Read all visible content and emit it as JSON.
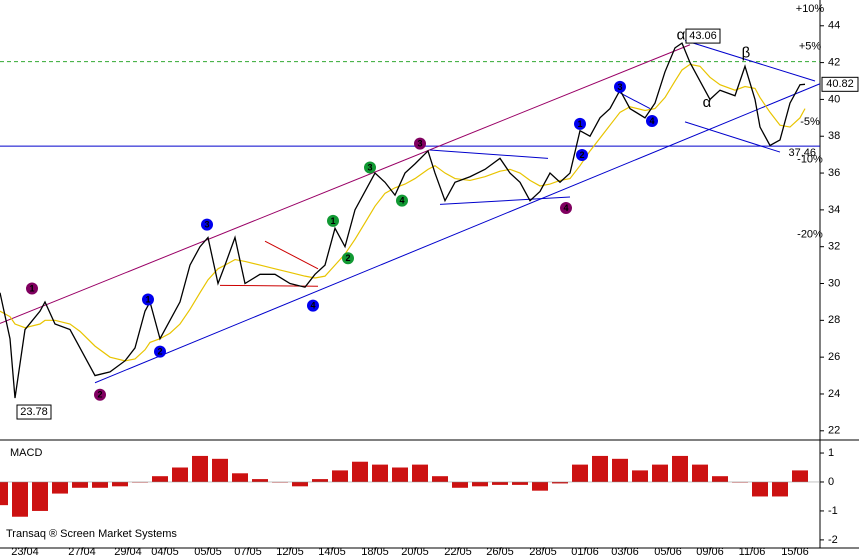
{
  "chart_data": [
    {
      "type": "line",
      "xlim": [
        0,
        41
      ],
      "ylim": [
        21.5,
        45.4
      ],
      "yticks": [
        22,
        24,
        26,
        28,
        30,
        32,
        34,
        36,
        38,
        40,
        42,
        44
      ],
      "x": [
        0,
        0.5,
        0.75,
        1.25,
        2,
        2.25,
        2.75,
        3.5,
        4,
        4.75,
        5.5,
        6.25,
        6.75,
        7.25,
        7.5,
        8,
        8.5,
        9,
        9.5,
        10,
        10.4,
        10.9,
        11.25,
        11.75,
        12.25,
        13,
        13.75,
        14.5,
        15.25,
        15.75,
        16.25,
        16.75,
        17.25,
        17.75,
        18.25,
        18.75,
        19.25,
        19.75,
        20.25,
        20.75,
        21.4,
        21.75,
        22.25,
        22.75,
        23.5,
        24.25,
        25,
        25.5,
        26,
        26.5,
        27,
        27.5,
        28,
        28.5,
        29,
        29.5,
        30,
        30.5,
        31,
        31.5,
        32.25,
        32.75,
        33.25,
        33.75,
        34.1,
        34.5,
        35,
        35.5,
        36,
        36.75,
        37.25,
        37.75,
        38,
        38.5,
        39,
        39.5,
        40,
        40.25
      ],
      "series": [
        {
          "color": "#000000",
          "values": [
            29.5,
            27,
            23.78,
            27.5,
            28.5,
            29,
            27.8,
            27.5,
            26.5,
            25,
            25.2,
            25.8,
            26.5,
            28.5,
            29,
            27,
            28,
            29,
            31,
            32,
            32.5,
            30,
            31,
            32.5,
            30,
            30.5,
            30.5,
            30,
            29.8,
            30.5,
            31,
            33,
            32,
            34,
            35,
            36,
            35.5,
            34.8,
            36,
            36.5,
            37.2,
            36,
            34.5,
            35.5,
            35.8,
            36.2,
            36.8,
            36,
            35.5,
            34.5,
            35,
            36,
            35.5,
            36,
            38.3,
            38,
            39,
            39.5,
            40.5,
            39.5,
            39,
            39.8,
            41.5,
            42.8,
            43.06,
            42,
            41,
            40,
            40.5,
            40.2,
            41.8,
            40,
            38.5,
            37.5,
            37.8,
            39.8,
            40.8,
            40.82
          ]
        },
        {
          "color": "#e8c400",
          "values": [
            28.5,
            28.2,
            27.8,
            27.6,
            27.8,
            28,
            28,
            27.8,
            27.4,
            26.6,
            26,
            25.8,
            25.9,
            26.4,
            26.8,
            27,
            27.3,
            27.8,
            28.6,
            29.5,
            30.2,
            30.8,
            31,
            31.3,
            31.2,
            31,
            30.8,
            30.6,
            30.4,
            30.3,
            30.4,
            31,
            31.6,
            32.4,
            33.3,
            34.2,
            34.9,
            35.2,
            35.4,
            35.7,
            36.2,
            36.4,
            36,
            35.7,
            35.6,
            35.8,
            36.1,
            36.2,
            36,
            35.6,
            35.3,
            35.4,
            35.6,
            35.7,
            36.4,
            37.2,
            37.9,
            38.6,
            39.3,
            39.6,
            39.4,
            39.5,
            40.1,
            41,
            41.6,
            41.9,
            41.8,
            41.2,
            40.8,
            40.5,
            40.7,
            40.6,
            40.1,
            39.3,
            38.6,
            38.5,
            39,
            39.5
          ]
        }
      ],
      "hlines": [
        {
          "value": 37.46,
          "color": "#0000cc",
          "dashed": false,
          "labeled": true
        },
        {
          "value": 42.05,
          "color": "#33aa33",
          "dashed": true,
          "labeled": false
        }
      ],
      "levels": [
        {
          "value": 44.9,
          "label": "+10%",
          "color": "#22922a"
        },
        {
          "value": 42.86,
          "label": "+5%",
          "color": "#22922a"
        },
        {
          "value": 38.78,
          "label": "-5%",
          "color": "#cc1111"
        },
        {
          "value": 36.74,
          "label": "-10%",
          "color": "#cc1111"
        },
        {
          "value": 32.66,
          "label": "-20%",
          "color": "#cc1111"
        }
      ],
      "lines": [
        {
          "x": [
            0,
            34.5
          ],
          "y": [
            27.83,
            42.97
          ],
          "color": "#990066"
        },
        {
          "x": [
            4.75,
            41
          ],
          "y": [
            24.61,
            40.85
          ],
          "color": "#0000cc"
        },
        {
          "x": [
            21.5,
            27.4
          ],
          "y": [
            37.25,
            36.8
          ],
          "color": "#0000cc"
        },
        {
          "x": [
            22,
            28.5
          ],
          "y": [
            34.3,
            34.7
          ],
          "color": "#0000cc"
        },
        {
          "x": [
            13.25,
            15.9
          ],
          "y": [
            32.3,
            30.8
          ],
          "color": "#cc0000"
        },
        {
          "x": [
            11,
            15.9
          ],
          "y": [
            29.9,
            29.85
          ],
          "color": "#cc0000"
        },
        {
          "x": [
            30.75,
            32.5
          ],
          "y": [
            40.5,
            39.5
          ],
          "color": "#0000cc"
        },
        {
          "x": [
            34.25,
            40.75
          ],
          "y": [
            43.2,
            41.0
          ],
          "color": "#0000cc"
        },
        {
          "x": [
            34.25,
            39
          ],
          "y": [
            38.78,
            37.14
          ],
          "color": "#0000cc"
        }
      ],
      "annotations": [
        {
          "text": "1",
          "x": 1.6,
          "y": 29.73,
          "color": "#800060",
          "circle": true
        },
        {
          "text": "2",
          "x": 5,
          "y": 23.96,
          "color": "#800060",
          "circle": true
        },
        {
          "text": "1",
          "x": 7.4,
          "y": 29.13,
          "color": "#0000ee",
          "circle": true
        },
        {
          "text": "2",
          "x": 8,
          "y": 26.3,
          "color": "#0000ee",
          "circle": true
        },
        {
          "text": "3",
          "x": 10.35,
          "y": 33.2,
          "color": "#0000ee",
          "circle": true
        },
        {
          "text": "4",
          "x": 15.65,
          "y": 28.8,
          "color": "#0000ee",
          "circle": true
        },
        {
          "text": "1",
          "x": 16.65,
          "y": 33.4,
          "color": "#119933",
          "circle": true
        },
        {
          "text": "2",
          "x": 17.4,
          "y": 31.37,
          "color": "#119933",
          "circle": true
        },
        {
          "text": "3",
          "x": 18.5,
          "y": 36.3,
          "color": "#119933",
          "circle": true
        },
        {
          "text": "4",
          "x": 20.1,
          "y": 34.5,
          "color": "#119933",
          "circle": true
        },
        {
          "text": "3",
          "x": 21,
          "y": 37.6,
          "color": "#800060",
          "circle": true
        },
        {
          "text": "4",
          "x": 28.3,
          "y": 34.1,
          "color": "#800060",
          "circle": true
        },
        {
          "text": "1",
          "x": 29,
          "y": 38.67,
          "color": "#0000ee",
          "circle": true
        },
        {
          "text": "2",
          "x": 29.1,
          "y": 36.98,
          "color": "#0000ee",
          "circle": true
        },
        {
          "text": "3",
          "x": 31,
          "y": 40.68,
          "color": "#0000ee",
          "circle": true
        },
        {
          "text": "4",
          "x": 32.6,
          "y": 38.83,
          "color": "#0000ee",
          "circle": true
        },
        {
          "text": "α",
          "x": 34.05,
          "y": 43.46,
          "color": "#800060",
          "circle": false
        },
        {
          "text": "α",
          "x": 35.35,
          "y": 39.8,
          "color": "#338888",
          "circle": false
        },
        {
          "text": "β",
          "x": 37.3,
          "y": 42.48,
          "color": "#338888",
          "circle": false
        }
      ],
      "callouts": [
        {
          "x": 34.1,
          "value": 43.06,
          "side": "right"
        },
        {
          "x": 0.75,
          "value": 23.78,
          "side": "below"
        }
      ]
    },
    {
      "type": "bar",
      "title": "MACD",
      "source": "Transaq ® Screen Market Systems",
      "xlim": [
        0,
        41
      ],
      "ylim": [
        -2.28,
        1.45
      ],
      "yticks": [
        -2,
        -1,
        0,
        1
      ],
      "color": "#cc1111",
      "x": [
        0,
        1,
        2,
        3,
        4,
        5,
        6,
        7,
        8,
        9,
        10,
        11,
        12,
        13,
        14,
        15,
        16,
        17,
        18,
        19,
        20,
        21,
        22,
        23,
        24,
        25,
        26,
        27,
        28,
        29,
        30,
        31,
        32,
        33,
        34,
        35,
        36,
        37,
        38,
        39,
        40
      ],
      "values": [
        -0.8,
        -1.2,
        -1.0,
        -0.4,
        -0.2,
        -0.2,
        -0.15,
        0,
        0.2,
        0.5,
        0.9,
        0.8,
        0.3,
        0.1,
        0,
        -0.15,
        0.1,
        0.4,
        0.7,
        0.6,
        0.5,
        0.6,
        0.2,
        -0.2,
        -0.15,
        -0.1,
        -0.1,
        -0.3,
        -0.05,
        0.6,
        0.9,
        0.8,
        0.4,
        0.6,
        0.9,
        0.6,
        0.2,
        0,
        -0.5,
        -0.5,
        0.4
      ],
      "xticks": [
        {
          "value": 1.25,
          "label": "23/04"
        },
        {
          "value": 4.1,
          "label": "27/04"
        },
        {
          "value": 6.4,
          "label": "29/04"
        },
        {
          "value": 8.25,
          "label": "04/05"
        },
        {
          "value": 10.4,
          "label": "05/05"
        },
        {
          "value": 12.4,
          "label": "07/05"
        },
        {
          "value": 14.5,
          "label": "12/05"
        },
        {
          "value": 16.6,
          "label": "14/05"
        },
        {
          "value": 18.75,
          "label": "18/05"
        },
        {
          "value": 20.75,
          "label": "20/05"
        },
        {
          "value": 22.9,
          "label": "22/05"
        },
        {
          "value": 25,
          "label": "26/05"
        },
        {
          "value": 27.15,
          "label": "28/05"
        },
        {
          "value": 29.25,
          "label": "01/06"
        },
        {
          "value": 31.25,
          "label": "03/06"
        },
        {
          "value": 33.4,
          "label": "05/06"
        },
        {
          "value": 35.5,
          "label": "09/06"
        },
        {
          "value": 37.6,
          "label": "11/06"
        },
        {
          "value": 39.75,
          "label": "15/06"
        }
      ]
    }
  ]
}
